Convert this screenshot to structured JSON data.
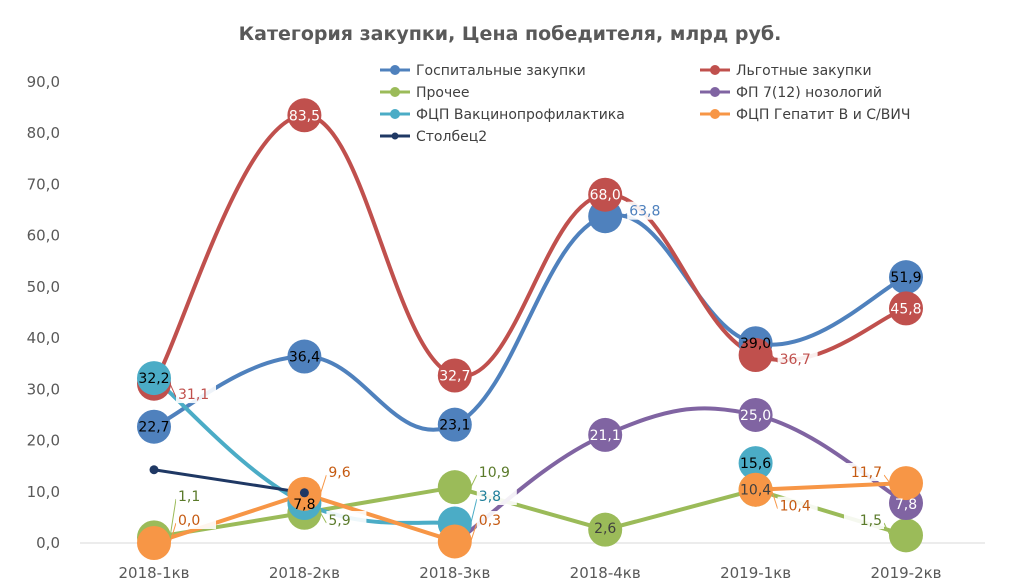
{
  "chart_data": {
    "type": "line",
    "title": "Категория закупки, Цена победителя, млрд руб.",
    "xlabel": "",
    "ylabel": "",
    "categories": [
      "2018-1кв",
      "2018-2кв",
      "2018-3кв",
      "2018-4кв",
      "2019-1кв",
      "2019-2кв"
    ],
    "ylim": [
      0,
      90
    ],
    "yticks": [
      0,
      10,
      20,
      30,
      40,
      50,
      60,
      70,
      80,
      90
    ],
    "ytick_labels": [
      "0,0",
      "10,0",
      "20,0",
      "30,0",
      "40,0",
      "50,0",
      "60,0",
      "70,0",
      "80,0",
      "90,0"
    ],
    "grid": false,
    "legend_position": "top",
    "series": [
      {
        "name": "Госпитальные закупки",
        "color": "#4f81bd",
        "label_color": "#000000",
        "marker": "large",
        "smooth": true,
        "values": [
          22.7,
          36.4,
          23.1,
          63.8,
          39.0,
          51.9
        ],
        "labels": [
          "22,7",
          "36,4",
          "23,1",
          "63,8",
          "39,0",
          "51,9"
        ]
      },
      {
        "name": "Льготные закупки",
        "color": "#c0504d",
        "label_color": "#ffffff",
        "marker": "large",
        "smooth": true,
        "values": [
          31.1,
          83.5,
          32.7,
          68.0,
          36.7,
          45.8
        ],
        "labels": [
          "31,1",
          "83,5",
          "32,7",
          "68,0",
          "36,7",
          "45,8"
        ]
      },
      {
        "name": "Прочее",
        "color": "#9bbb59",
        "label_color": "#404040",
        "marker": "large",
        "smooth": false,
        "values": [
          1.1,
          5.9,
          10.9,
          2.6,
          10.4,
          1.5
        ],
        "labels": [
          "1,1",
          "5,9",
          "10,9",
          "2,6",
          "10,4",
          "1,5"
        ]
      },
      {
        "name": "ФП 7(12) нозологий",
        "color": "#8064a2",
        "label_color": "#ffffff",
        "marker": "large",
        "smooth": true,
        "values": [
          null,
          null,
          0.0,
          21.1,
          25.0,
          7.8
        ],
        "labels": [
          null,
          null,
          null,
          "21,1",
          "25,0",
          "7,8"
        ]
      },
      {
        "name": "ФЦП Вакцинопрофилактика",
        "color": "#4bacc6",
        "label_color": "#000000",
        "marker": "large",
        "smooth": true,
        "values": [
          32.2,
          7.8,
          3.8,
          null,
          15.6,
          null
        ],
        "labels": [
          "32,2",
          "7,8",
          "3,8",
          null,
          "15,6",
          null
        ]
      },
      {
        "name": "ФЦП Гепатит В и С/ВИЧ",
        "color": "#f79646",
        "label_color": "#000000",
        "marker": "large",
        "smooth": false,
        "values": [
          0.0,
          9.6,
          0.3,
          null,
          10.4,
          11.7
        ],
        "labels": [
          "0,0",
          "9,6",
          "0,3",
          null,
          "10,4",
          "11,7"
        ]
      },
      {
        "name": "Столбец2",
        "color": "#1f3864",
        "label_color": "#000000",
        "marker": "small",
        "smooth": false,
        "values": [
          14.3,
          9.8,
          null,
          null,
          null,
          null
        ],
        "labels": [
          null,
          null,
          null,
          null,
          null,
          null
        ]
      }
    ]
  }
}
